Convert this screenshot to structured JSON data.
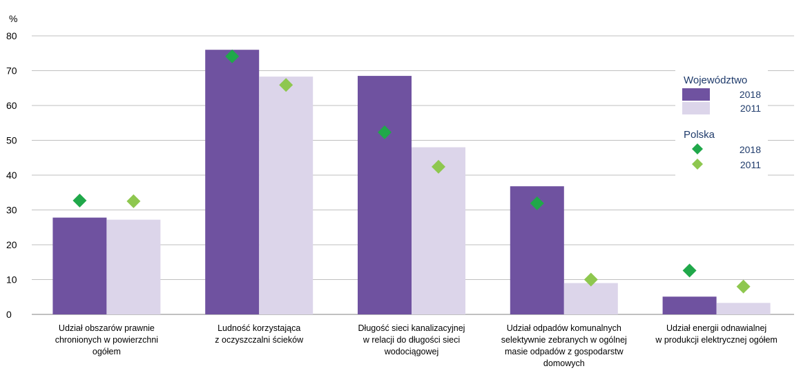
{
  "chart_data": {
    "type": "bar",
    "y_unit_label": "%",
    "ylim": [
      0,
      80
    ],
    "yticks": [
      0,
      10,
      20,
      30,
      40,
      50,
      60,
      70,
      80
    ],
    "grid": true,
    "legend_position": "right",
    "categories": [
      [
        "Udział obszarów prawnie",
        "chronionych w powierzchni",
        "ogółem"
      ],
      [
        "Ludność korzystająca",
        "z oczyszczalni ścieków"
      ],
      [
        "Długość sieci kanalizacyjnej",
        "w relacji do długości sieci",
        "wodociągowej"
      ],
      [
        "Udział odpadów komunalnych",
        "selektywnie zebranych w ogólnej",
        "masie odpadów z gospodarstw",
        "domowych"
      ],
      [
        "Udział energii odnawialnej",
        "w produkcji elektrycznej ogółem"
      ]
    ],
    "bar_groups": [
      {
        "group": "Województwo",
        "series": [
          {
            "name": "2018",
            "values": [
              27.8,
              76.0,
              68.5,
              36.8,
              5.1
            ],
            "color": "#6f52a0"
          },
          {
            "name": "2011",
            "values": [
              27.2,
              68.3,
              48.0,
              9.0,
              3.3
            ],
            "color": "#dcd5ea"
          }
        ]
      }
    ],
    "marker_groups": [
      {
        "group": "Polska",
        "series": [
          {
            "name": "2018",
            "values": [
              32.7,
              74.1,
              52.3,
              31.9,
              12.6
            ],
            "color": "#20a84a"
          },
          {
            "name": "2011",
            "values": [
              32.5,
              65.9,
              42.4,
              10.0,
              8.0
            ],
            "color": "#8ec74f"
          }
        ]
      }
    ]
  }
}
